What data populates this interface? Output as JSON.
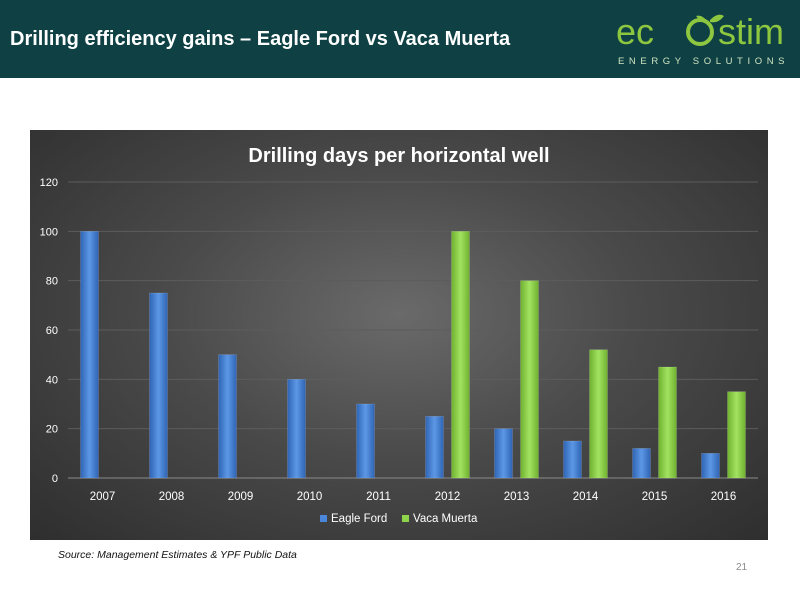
{
  "slide": {
    "title": "Drilling efficiency gains – Eagle Ford vs Vaca Muerta",
    "source": "Source: Management Estimates & YPF Public Data",
    "page_number": "21"
  },
  "logo": {
    "wordmark_left": "ec",
    "wordmark_right": "stim",
    "tagline": "ENERGY SOLUTIONS",
    "icon": "leaf-o-icon",
    "colors": {
      "wordmark": "#8dc63f",
      "tagline": "#cfe3c0"
    }
  },
  "chart_data": {
    "type": "bar",
    "title": "Drilling days per horizontal well",
    "xlabel": "",
    "ylabel": "",
    "ylim": [
      0,
      120
    ],
    "yticks": [
      0,
      20,
      40,
      60,
      80,
      100,
      120
    ],
    "grid": true,
    "legend_position": "bottom",
    "categories": [
      "2007",
      "2008",
      "2009",
      "2010",
      "2011",
      "2012",
      "2013",
      "2014",
      "2015",
      "2016"
    ],
    "series": [
      {
        "name": "Eagle Ford",
        "color": "#4a86d9",
        "values": [
          100,
          75,
          50,
          40,
          30,
          25,
          20,
          15,
          12,
          10
        ]
      },
      {
        "name": "Vaca Muerta",
        "color": "#8ed44a",
        "values": [
          null,
          null,
          null,
          null,
          null,
          100,
          80,
          52,
          45,
          35
        ]
      }
    ]
  }
}
